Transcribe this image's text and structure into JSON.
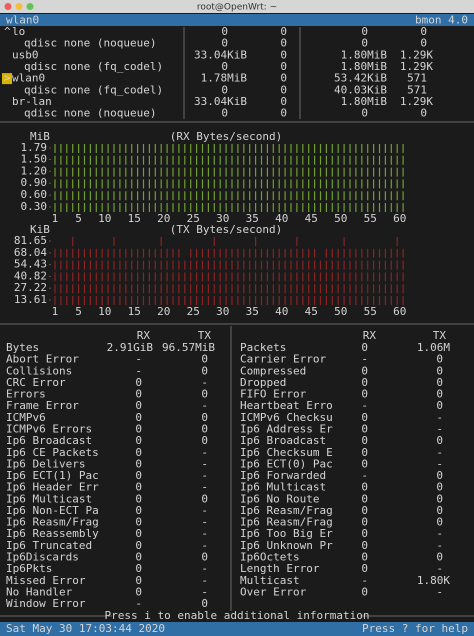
{
  "window_title": "root@OpenWrt: ~",
  "header": {
    "interface": "wlan0",
    "app": "bmon 4.0"
  },
  "interfaces": [
    {
      "marker": "^",
      "name": "lo",
      "rx_bytes": "0",
      "rx_packets": "0",
      "tx_bytes": "0",
      "tx_packets": "0"
    },
    {
      "name": "qdisc none (noqueue)",
      "rx_bytes": "0",
      "rx_packets": "0",
      "tx_bytes": "0",
      "tx_packets": "0"
    },
    {
      "name": "usb0",
      "rx_bytes": "33.04KiB",
      "rx_packets": "0",
      "tx_bytes": "1.80MiB",
      "tx_packets": "1.29K"
    },
    {
      "name": "qdisc none (fq_codel)",
      "rx_bytes": "0",
      "rx_packets": "0",
      "tx_bytes": "1.80MiB",
      "tx_packets": "1.29K"
    },
    {
      "marker": ">",
      "name": "wlan0",
      "rx_bytes": "1.78MiB",
      "rx_packets": "0",
      "tx_bytes": "53.42KiB",
      "tx_packets": "571"
    },
    {
      "name": "qdisc none (fq_codel)",
      "rx_bytes": "0",
      "rx_packets": "0",
      "tx_bytes": "40.03KiB",
      "tx_packets": "571"
    },
    {
      "name": "br-lan",
      "rx_bytes": "33.04KiB",
      "rx_packets": "0",
      "tx_bytes": "1.80MiB",
      "tx_packets": "1.29K"
    },
    {
      "name": "qdisc none (noqueue)",
      "rx_bytes": "0",
      "rx_packets": "0",
      "tx_bytes": "0",
      "tx_packets": "0"
    }
  ],
  "graphs": [
    {
      "unit": "MiB",
      "title": "(RX Bytes/second)",
      "color": "#6f9f2f",
      "yticks": [
        {
          "value": 1.79,
          "label": "1.79"
        },
        {
          "value": 1.5,
          "label": "1.50"
        },
        {
          "value": 1.2,
          "label": "1.20"
        },
        {
          "value": 0.9,
          "label": "0.90"
        },
        {
          "value": 0.6,
          "label": "0.60"
        },
        {
          "value": 0.3,
          "label": "0.30"
        }
      ],
      "xticks": [
        1,
        5,
        10,
        15,
        20,
        25,
        30,
        35,
        40,
        45,
        50,
        55,
        60
      ],
      "values": [
        1.79,
        1.79,
        1.79,
        1.79,
        1.79,
        1.79,
        1.79,
        1.79,
        1.79,
        1.79,
        1.79,
        1.79,
        1.79,
        1.79,
        1.79,
        1.79,
        1.79,
        1.79,
        1.79,
        1.79,
        1.79,
        1.79,
        1.79,
        1.79,
        1.79,
        1.79,
        1.79,
        1.79,
        1.79,
        1.79,
        1.79,
        1.79,
        1.79,
        1.79,
        1.79,
        1.79,
        1.79,
        1.79,
        1.79,
        1.79,
        1.79,
        1.79,
        1.79,
        1.79,
        1.79,
        1.79,
        1.79,
        1.79,
        1.79,
        1.79,
        1.79,
        1.79,
        1.79,
        1.79,
        1.79,
        1.79,
        1.79,
        1.79,
        1.79,
        1.79
      ]
    },
    {
      "unit": "KiB",
      "title": "(TX Bytes/second)",
      "color": "#8c2222",
      "yticks": [
        81.65,
        68.04,
        54.43,
        40.82,
        27.22,
        13.61
      ],
      "xticks": [
        1,
        5,
        10,
        15,
        20,
        25,
        30,
        35,
        40,
        45,
        50,
        55,
        60
      ],
      "values": [
        68.04,
        68.04,
        68.04,
        81.65,
        68.04,
        68.04,
        68.04,
        68.04,
        68.04,
        68.04,
        81.65,
        68.04,
        68.04,
        68.04,
        68.04,
        68.04,
        68.04,
        68.04,
        81.65,
        68.04,
        68.04,
        68.04,
        54.43,
        68.04,
        68.04,
        68.04,
        68.04,
        81.65,
        68.04,
        68.04,
        68.04,
        68.04,
        68.04,
        68.04,
        81.65,
        68.04,
        68.04,
        68.04,
        68.04,
        68.04,
        68.04,
        81.65,
        68.04,
        68.04,
        68.04,
        54.43,
        68.04,
        68.04,
        68.04,
        81.65,
        68.04,
        68.04,
        68.04,
        68.04,
        68.04,
        68.04,
        68.04,
        68.04,
        81.65,
        68.04
      ]
    }
  ],
  "details": {
    "left": {
      "headers": [
        "RX",
        "TX"
      ],
      "rows": [
        [
          "Bytes",
          "2.91GiB",
          "96.57MiB"
        ],
        [
          "Abort Error",
          "-",
          "0"
        ],
        [
          "Collisions",
          "-",
          "0"
        ],
        [
          "CRC Error",
          "0",
          "-"
        ],
        [
          "Errors",
          "0",
          "0"
        ],
        [
          "Frame Error",
          "0",
          "-"
        ],
        [
          "ICMPv6",
          "0",
          "0"
        ],
        [
          "ICMPv6 Errors",
          "0",
          "0"
        ],
        [
          "Ip6 Broadcast",
          "0",
          "0"
        ],
        [
          "Ip6 CE Packets",
          "0",
          "-"
        ],
        [
          "Ip6 Delivers",
          "0",
          "-"
        ],
        [
          "Ip6 ECT(1) Pac",
          "0",
          "-"
        ],
        [
          "Ip6 Header Err",
          "0",
          "-"
        ],
        [
          "Ip6 Multicast",
          "0",
          "0"
        ],
        [
          "Ip6 Non-ECT Pa",
          "0",
          "-"
        ],
        [
          "Ip6 Reasm/Frag",
          "0",
          "-"
        ],
        [
          "Ip6 Reassembly",
          "0",
          "-"
        ],
        [
          "Ip6 Truncated",
          "0",
          "-"
        ],
        [
          "Ip6Discards",
          "0",
          "0"
        ],
        [
          "Ip6Pkts",
          "0",
          "-"
        ],
        [
          "Missed Error",
          "0",
          "-"
        ],
        [
          "No Handler",
          "0",
          "-"
        ],
        [
          "Window Error",
          "-",
          "0"
        ]
      ]
    },
    "right": {
      "headers": [
        "RX",
        "TX"
      ],
      "rows": [
        [
          "Packets",
          "0",
          "1.06M"
        ],
        [
          "Carrier Error",
          "-",
          "0"
        ],
        [
          "Compressed",
          "0",
          "0"
        ],
        [
          "Dropped",
          "0",
          "0"
        ],
        [
          "FIFO Error",
          "0",
          "0"
        ],
        [
          "Heartbeat Erro",
          "-",
          "0"
        ],
        [
          "ICMPv6 Checksu",
          "0",
          "-"
        ],
        [
          "Ip6 Address Er",
          "0",
          "-"
        ],
        [
          "Ip6 Broadcast",
          "0",
          "0"
        ],
        [
          "Ip6 Checksum E",
          "0",
          "-"
        ],
        [
          "Ip6 ECT(0) Pac",
          "0",
          "-"
        ],
        [
          "Ip6 Forwarded",
          "-",
          "0"
        ],
        [
          "Ip6 Multicast",
          "0",
          "0"
        ],
        [
          "Ip6 No Route",
          "0",
          "0"
        ],
        [
          "Ip6 Reasm/Frag",
          "0",
          "0"
        ],
        [
          "Ip6 Reasm/Frag",
          "0",
          "0"
        ],
        [
          "Ip6 Too Big Er",
          "0",
          "-"
        ],
        [
          "Ip6 Unknown Pr",
          "0",
          "-"
        ],
        [
          "Ip6Octets",
          "0",
          "0"
        ],
        [
          "Length Error",
          "0",
          "-"
        ],
        [
          "Multicast",
          "-",
          "1.80K"
        ],
        [
          "Over Error",
          "0",
          "-"
        ]
      ]
    }
  },
  "footer": {
    "hint": "Press i to enable additional information",
    "time": "Sat May 30 17:03:44 2020",
    "help": "Press ? for help"
  }
}
